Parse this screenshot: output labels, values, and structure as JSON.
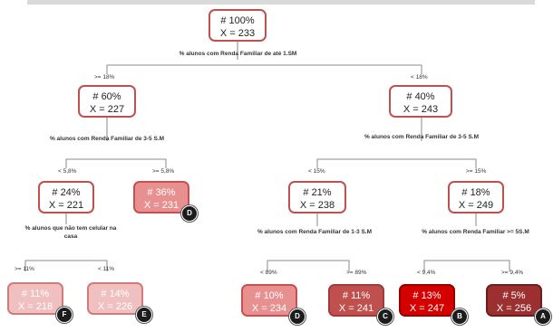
{
  "root": {
    "pct": "# 100%",
    "x": "X = 233"
  },
  "split_root": "% alunos com Renda Familiar de até 1.SM",
  "edge_root_left": ">= 18%",
  "edge_root_right": "< 18%",
  "left": {
    "pct": "# 60%",
    "x": "X = 227"
  },
  "right": {
    "pct": "# 40%",
    "x": "X = 243"
  },
  "split_left": "% alunos com Renda Familiar de 3-5 S.M",
  "split_right": "% alunos com Renda Familiar de 3-5 S.M",
  "edge_ll": "< 5,8%",
  "edge_lr": ">= 5,8%",
  "edge_rl": "< 15%",
  "edge_rr": ">= 15%",
  "ll": {
    "pct": "# 24%",
    "x": "X = 221"
  },
  "lr": {
    "pct": "# 36%",
    "x": "X = 231",
    "badge": "D"
  },
  "rl": {
    "pct": "# 21%",
    "x": "X = 238"
  },
  "rr": {
    "pct": "# 18%",
    "x": "X = 249"
  },
  "split_ll": "% alunos que não tem celular na casa",
  "split_rl": "% alunos com Renda Familiar de 1-3 S.M",
  "split_rr": "% alunos com Renda Familiar >= 5S.M",
  "edge_lll": ">= 11%",
  "edge_llr": "< 11%",
  "edge_rll": "< 89%",
  "edge_rlr": ">= 89%",
  "edge_rrl": "< 9,4%",
  "edge_rrr": ">= 9,4%",
  "leaf1": {
    "pct": "# 11%",
    "x": "X = 218",
    "badge": "F"
  },
  "leaf2": {
    "pct": "# 14%",
    "x": "X = 226",
    "badge": "E"
  },
  "leaf3": {
    "pct": "# 10%",
    "x": "X = 234",
    "badge": "D"
  },
  "leaf4": {
    "pct": "# 11%",
    "x": "X = 241",
    "badge": "C"
  },
  "leaf5": {
    "pct": "# 13%",
    "x": "X = 247",
    "badge": "B"
  },
  "leaf6": {
    "pct": "# 5%",
    "x": "X = 256",
    "badge": "A"
  }
}
